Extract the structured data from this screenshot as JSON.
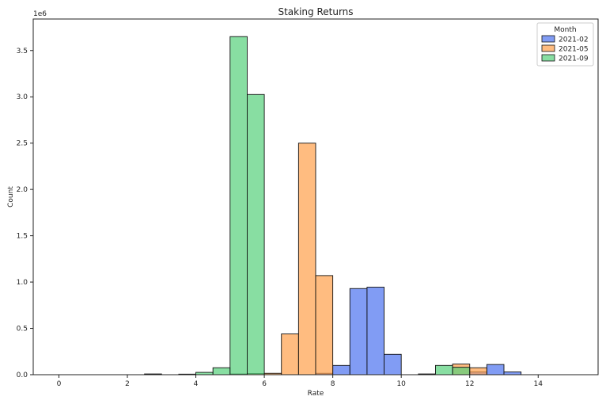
{
  "chart_data": {
    "type": "bar",
    "title": "Staking Returns",
    "xlabel": "Rate",
    "ylabel": "Count",
    "y_offset_label": "1e6",
    "bin_width": 0.5,
    "xlim": [
      -0.75,
      15.75
    ],
    "ylim": [
      0,
      3840000
    ],
    "x_ticks": [
      0,
      2,
      4,
      6,
      8,
      10,
      12,
      14
    ],
    "y_ticks": [
      0,
      500000,
      1000000,
      1500000,
      2000000,
      2500000,
      3000000,
      3500000
    ],
    "x_tick_labels": [
      "0",
      "2",
      "4",
      "6",
      "8",
      "10",
      "12",
      "14"
    ],
    "y_tick_labels": [
      "0.0",
      "0.5",
      "1.0",
      "1.5",
      "2.0",
      "2.5",
      "3.0",
      "3.5"
    ],
    "grid": false,
    "legend_title": "Month",
    "legend_position": "top-right",
    "series": [
      {
        "name": "2021-02",
        "color": "#4c72f0",
        "bins": [
          {
            "x": 7.5,
            "y": 15000
          },
          {
            "x": 8.0,
            "y": 100000
          },
          {
            "x": 8.5,
            "y": 930000
          },
          {
            "x": 9.0,
            "y": 945000
          },
          {
            "x": 9.5,
            "y": 220000
          },
          {
            "x": 12.0,
            "y": 30000
          },
          {
            "x": 12.5,
            "y": 110000
          },
          {
            "x": 13.0,
            "y": 30000
          }
        ]
      },
      {
        "name": "2021-05",
        "color": "#ff9f4a",
        "bins": [
          {
            "x": 5.0,
            "y": 8000
          },
          {
            "x": 5.5,
            "y": 12000
          },
          {
            "x": 6.0,
            "y": 15000
          },
          {
            "x": 6.5,
            "y": 440000
          },
          {
            "x": 7.0,
            "y": 2500000
          },
          {
            "x": 7.5,
            "y": 1070000
          },
          {
            "x": 11.5,
            "y": 115000
          },
          {
            "x": 12.0,
            "y": 75000
          }
        ]
      },
      {
        "name": "2021-09",
        "color": "#55d07a",
        "bins": [
          {
            "x": 2.5,
            "y": 8000
          },
          {
            "x": 3.5,
            "y": 6000
          },
          {
            "x": 4.0,
            "y": 25000
          },
          {
            "x": 4.5,
            "y": 75000
          },
          {
            "x": 5.0,
            "y": 3650000
          },
          {
            "x": 5.5,
            "y": 3025000
          },
          {
            "x": 10.5,
            "y": 8000
          },
          {
            "x": 11.0,
            "y": 100000
          },
          {
            "x": 11.5,
            "y": 80000
          }
        ]
      }
    ]
  }
}
